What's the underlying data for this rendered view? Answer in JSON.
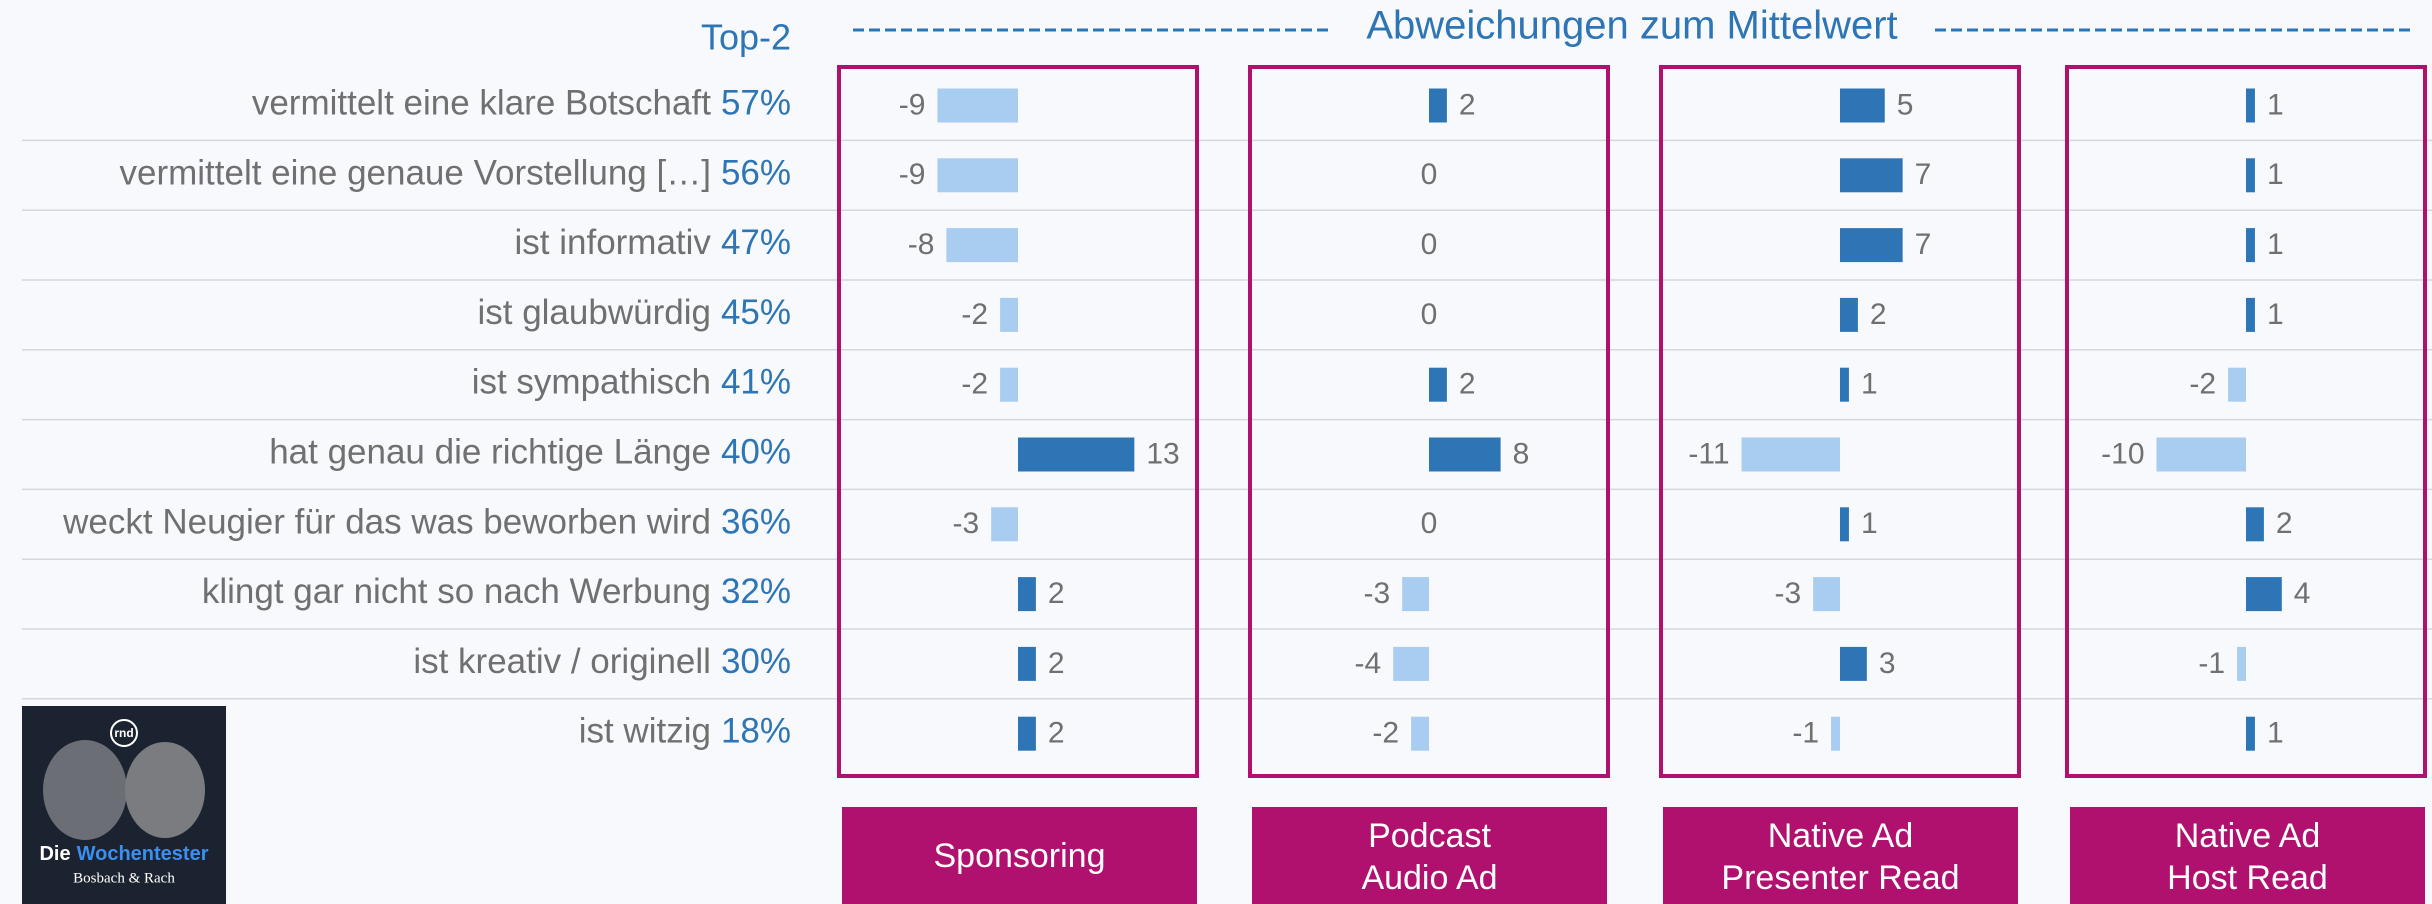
{
  "chart_data": {
    "type": "bar",
    "orientation": "horizontal",
    "title": "Abweichungen zum Mittelwert",
    "top2_label": "Top-2",
    "categories": [
      "vermittelt eine klare Botschaft",
      "vermittelt eine genaue Vorstellung […]",
      "ist informativ",
      "ist glaubwürdig",
      "ist sympathisch",
      "hat genau die richtige Länge",
      "weckt Neugier für das was beworben wird",
      "klingt gar nicht so nach Werbung",
      "ist kreativ / originell",
      "ist witzig"
    ],
    "top2": {
      "values": [
        57,
        56,
        47,
        45,
        41,
        40,
        36,
        32,
        30,
        18
      ],
      "value_labels": [
        "57%",
        "56%",
        "47%",
        "45%",
        "41%",
        "40%",
        "36%",
        "32%",
        "30%",
        "18%"
      ],
      "color": "#2e75b6"
    },
    "xlim": [
      -20,
      20
    ],
    "positive_color": "#2e75b6",
    "negative_color": "#a9cdf0",
    "panel_color": "#b0106e",
    "series": [
      {
        "name": "Sponsoring",
        "values": [
          -9,
          -9,
          -8,
          -2,
          -2,
          13,
          -3,
          2,
          2,
          2
        ]
      },
      {
        "name": "Podcast\nAudio Ad",
        "values": [
          2,
          0,
          0,
          0,
          2,
          8,
          0,
          -3,
          -4,
          -2
        ]
      },
      {
        "name": "Native Ad\nPresenter Read",
        "values": [
          5,
          7,
          7,
          2,
          1,
          -11,
          1,
          -3,
          3,
          -1
        ]
      },
      {
        "name": "Native Ad\nHost Read",
        "values": [
          1,
          1,
          1,
          1,
          -2,
          -10,
          2,
          4,
          -1,
          1
        ]
      }
    ]
  },
  "cover": {
    "logo": "rnd",
    "title_1": "Die",
    "title_2": "Wochentester",
    "subtitle": "Bosbach & Rach"
  }
}
